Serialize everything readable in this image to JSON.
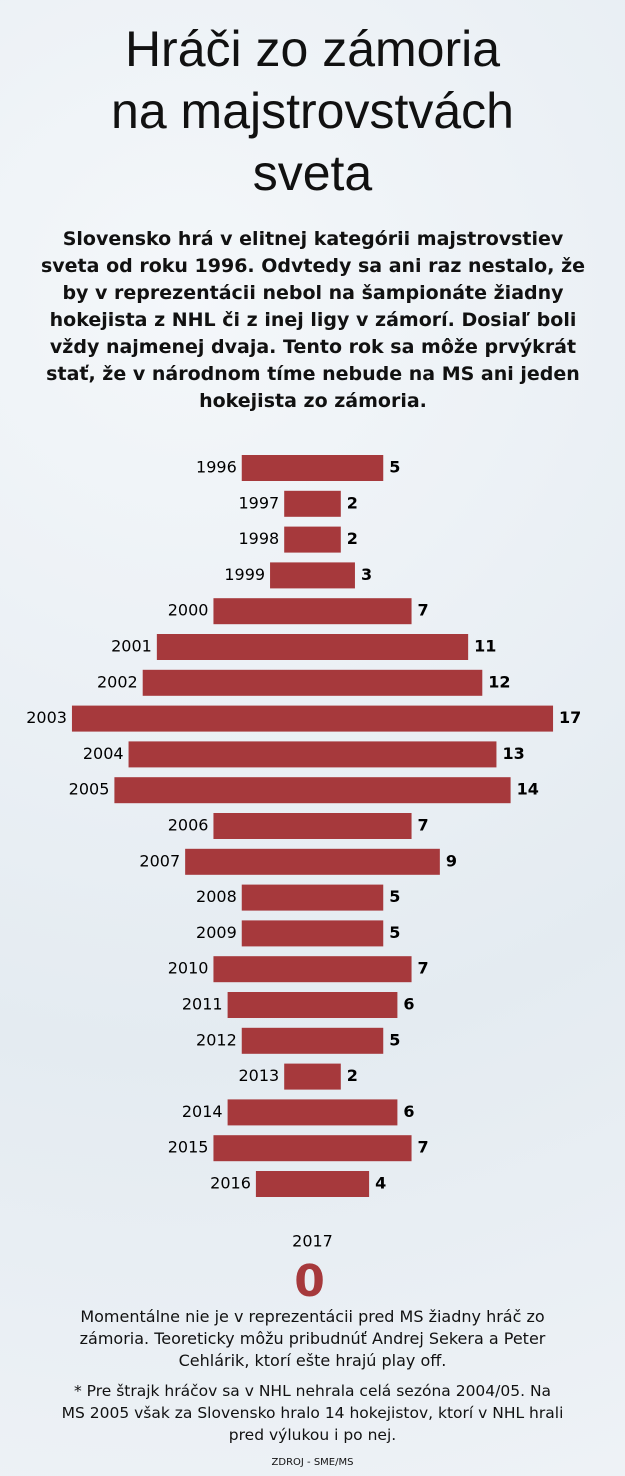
{
  "chart_data": {
    "type": "bar",
    "title": [
      "Hráči zo zámoria",
      "na majstrovstvách",
      "sveta"
    ],
    "subtitle": "Slovensko hrá v elitnej kategórii majstrovstiev sveta od roku 1996. Odvtedy sa ani raz nestalo, že by v reprezentácii nebol na šampionáte žiadny hokejista z NHL či z inej ligy v zámorí. Dosiaľ boli vždy najmenej dvaja. Tento rok sa môže prvýkrát stať, že v národnom tíme nebude na MS ani jeden hokejista zo zámoria.",
    "categories": [
      "1996",
      "1997",
      "1998",
      "1999",
      "2000",
      "2001",
      "2002",
      "2003",
      "2004",
      "2005",
      "2006",
      "2007",
      "2008",
      "2009",
      "2010",
      "2011",
      "2012",
      "2013",
      "2014",
      "2015",
      "2016",
      "2017"
    ],
    "values": [
      5,
      2,
      2,
      3,
      7,
      11,
      12,
      17,
      13,
      14,
      7,
      9,
      5,
      5,
      7,
      6,
      5,
      2,
      6,
      7,
      4,
      0
    ],
    "color": "#a6393c",
    "note": "Momentálne nie je v reprezentácii pred MS žiadny hráč zo zámoria. Teoreticky môžu pribudnúť Andrej Sekera a Peter Cehlárik, ktorí ešte hrajú play off.",
    "footnote": "* Pre štrajk hráčov sa v NHL nehrala celá sezóna 2004/05. Na MS 2005 však za Slovensko hralo 14 hokejistov, ktorí v NHL hrali pred výlukou i po nej.",
    "source": "ZDROJ - SME/MS"
  }
}
